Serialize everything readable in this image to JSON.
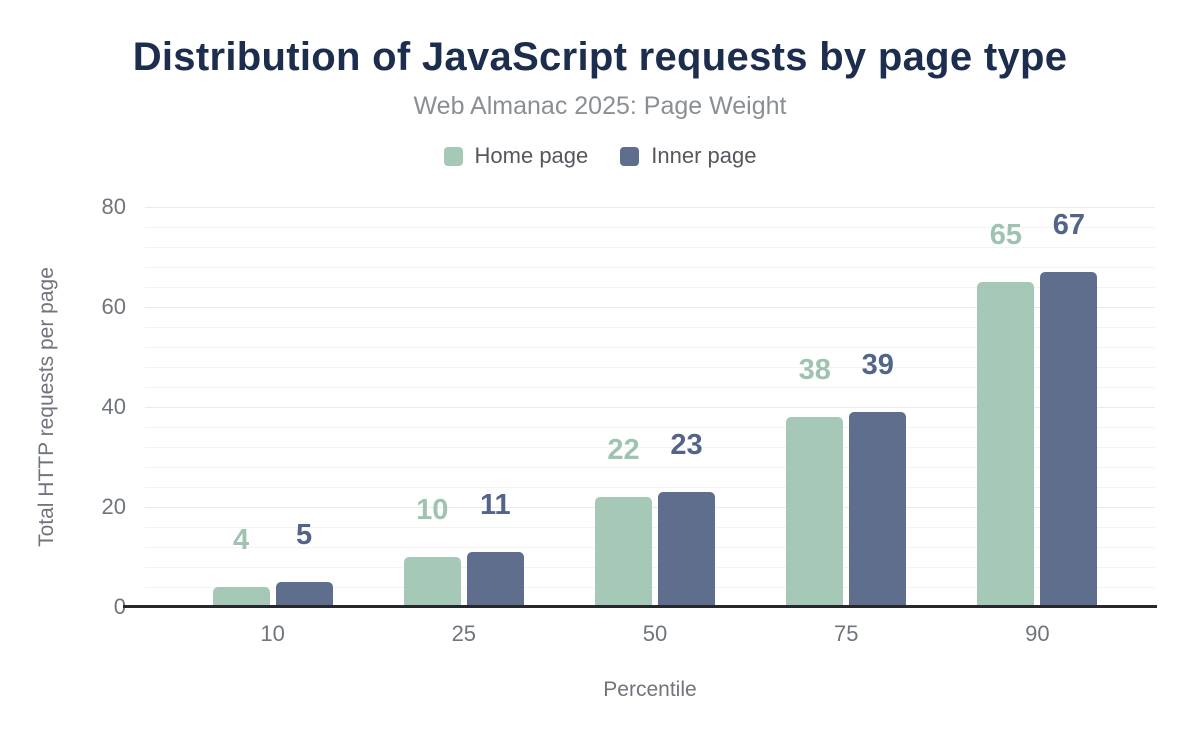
{
  "chart_data": {
    "type": "bar",
    "title": "Distribution of JavaScript requests by page type",
    "subtitle": "Web Almanac 2025: Page Weight",
    "categories": [
      "10",
      "25",
      "50",
      "75",
      "90"
    ],
    "series": [
      {
        "name": "Home page",
        "color": "#a6c9b7",
        "label_color": "#9fc3b1",
        "values": [
          4,
          10,
          22,
          38,
          65
        ]
      },
      {
        "name": "Inner page",
        "color": "#5e6e8c",
        "label_color": "#52648a",
        "values": [
          5,
          11,
          23,
          39,
          67
        ]
      }
    ],
    "xlabel": "Percentile",
    "ylabel": "Total HTTP requests per page",
    "ylim": [
      0,
      80
    ],
    "yticks": [
      0,
      20,
      40,
      60,
      80
    ],
    "grid": "horizontal-light",
    "legend_position": "top",
    "bar_labels_shown": true
  },
  "colors": {
    "title": "#1d2d4e",
    "subtitle": "#8a8f94",
    "tick_text": "#70757c",
    "axis_line": "#26282b",
    "background": "#ffffff"
  }
}
